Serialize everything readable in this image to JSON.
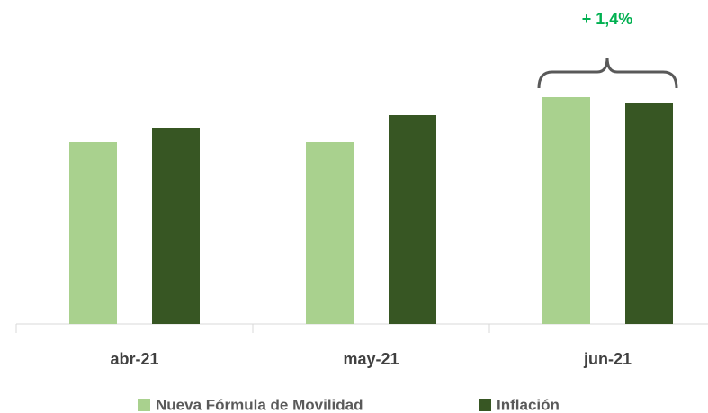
{
  "chart_data": {
    "type": "bar",
    "categories": [
      "abr-21",
      "may-21",
      "jun-21"
    ],
    "series": [
      {
        "name": "Nueva Fórmula de Movilidad",
        "color": "#a9d18e",
        "values": [
          202,
          202,
          252
        ]
      },
      {
        "name": "Inflación",
        "color": "#375623",
        "values": [
          218,
          232,
          245
        ]
      }
    ],
    "ylim": [
      0,
      360
    ],
    "annotation": "+ 1,4%"
  }
}
